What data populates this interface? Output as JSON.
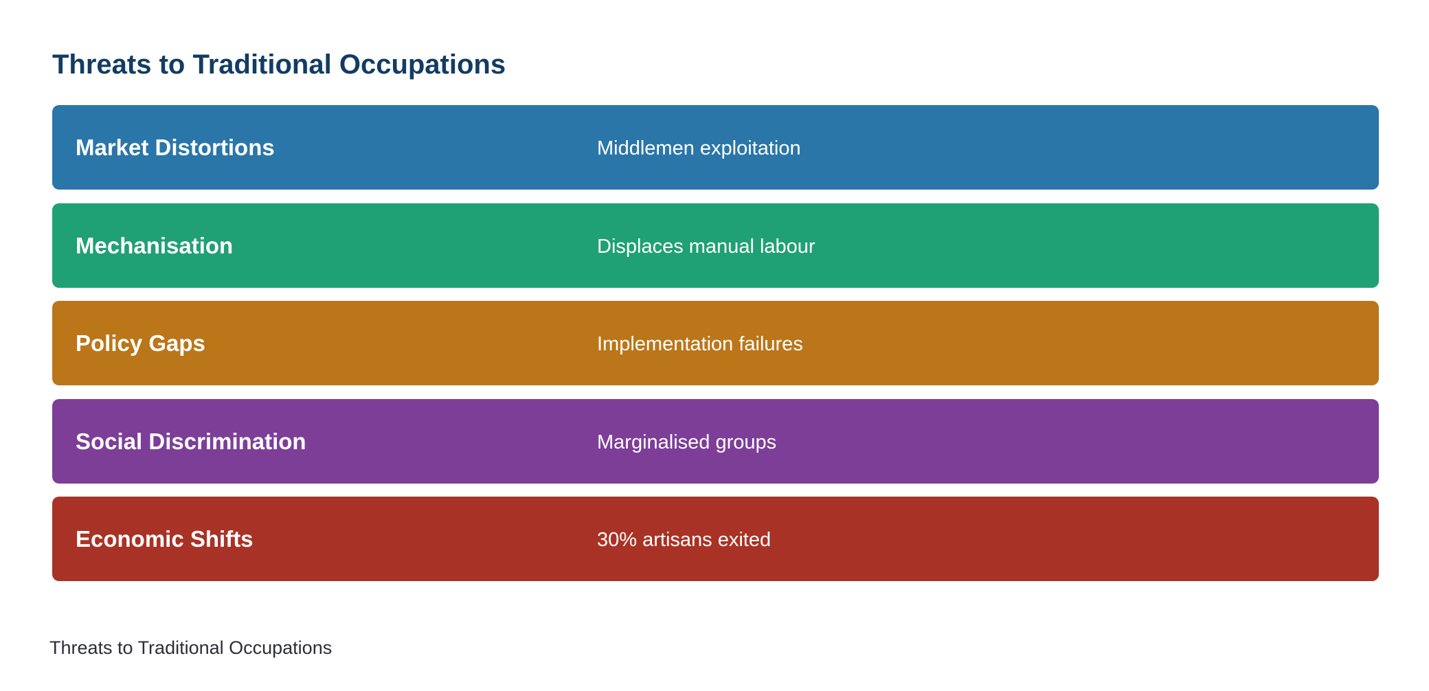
{
  "header": {
    "title": "Threats to Traditional Occupations"
  },
  "rows": [
    {
      "label": "Market Distortions",
      "description": "Middlemen exploitation",
      "color": "#2a76a8"
    },
    {
      "label": "Mechanisation",
      "description": "Displaces manual labour",
      "color": "#20a075"
    },
    {
      "label": "Policy Gaps",
      "description": "Implementation failures",
      "color": "#bb7619"
    },
    {
      "label": "Social Discrimination",
      "description": "Marginalised groups",
      "color": "#7d3e98"
    },
    {
      "label": "Economic Shifts",
      "description": "30% artisans exited",
      "color": "#a93226"
    }
  ],
  "caption": "Threats to Traditional Occupations"
}
